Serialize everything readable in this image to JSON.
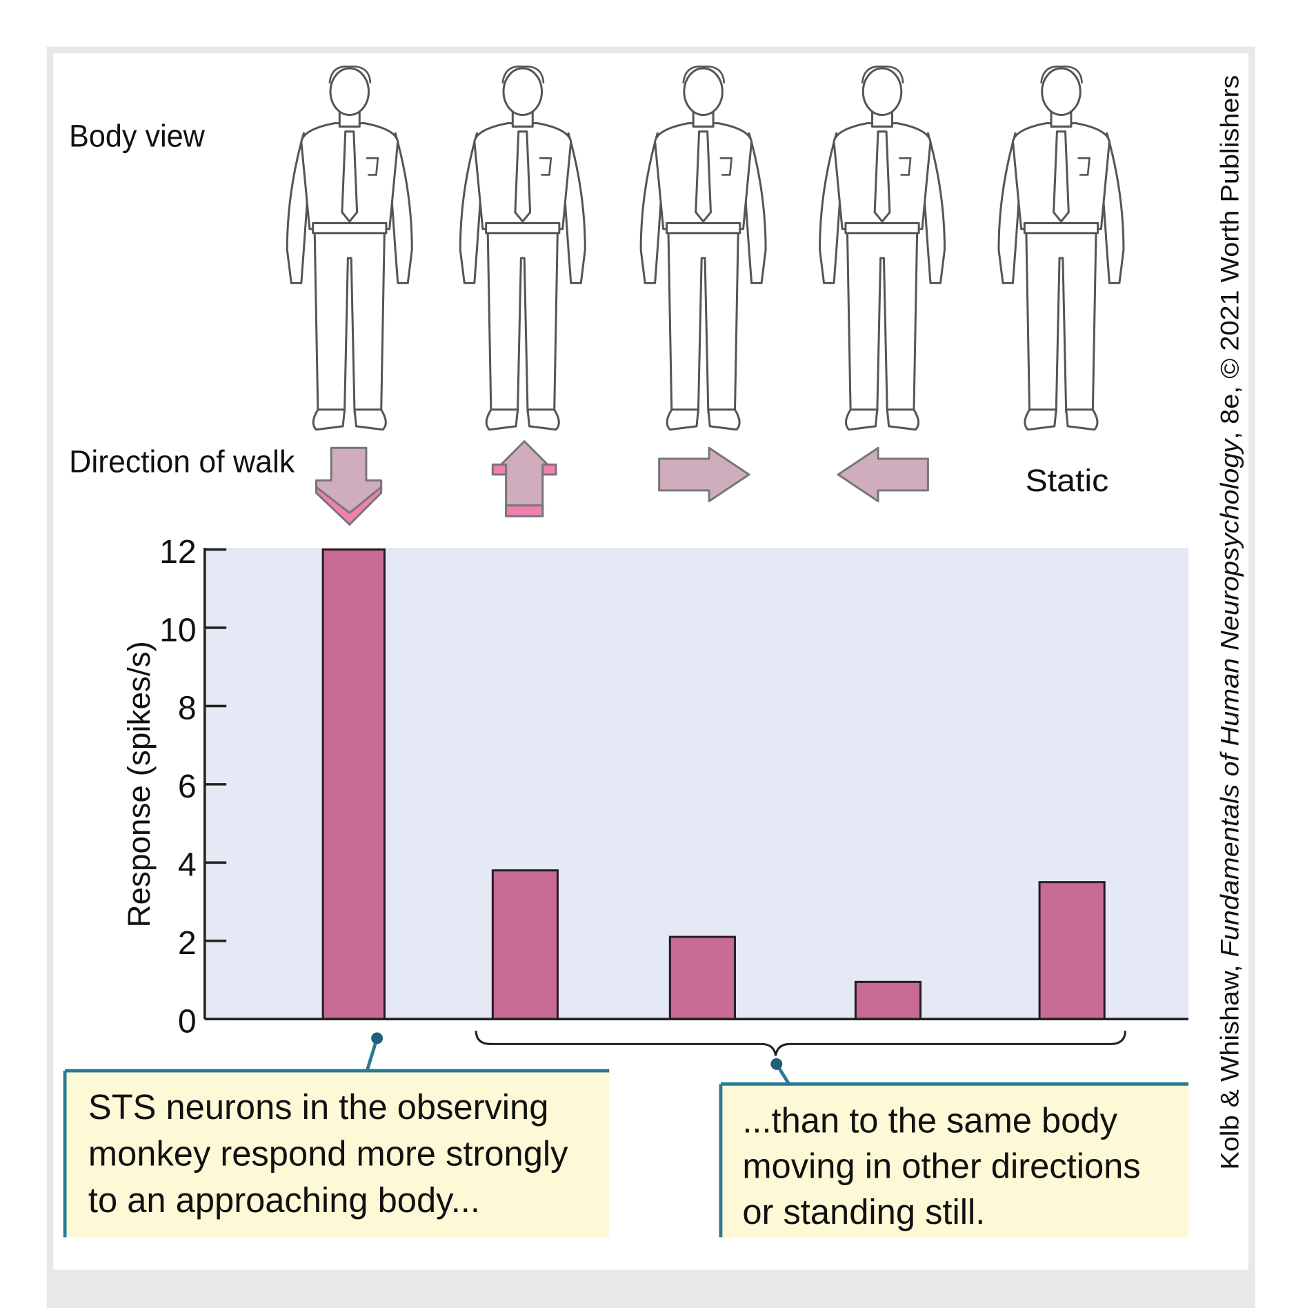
{
  "labels": {
    "body_view": "Body view",
    "direction_of_walk": "Direction of walk",
    "static": "Static"
  },
  "callouts": {
    "left": [
      "STS neurons in the observing",
      "monkey respond more strongly",
      "to an approaching body..."
    ],
    "right": [
      "...than to the same body",
      "moving in other directions",
      "or standing still."
    ]
  },
  "credit": {
    "prefix": "Kolb & Whishaw, ",
    "title": "Fundamentals of Human Neuropsychology",
    "suffix": ", 8e, © 2021 Worth Publishers"
  },
  "colors": {
    "bar": "#c76b95",
    "plot_bg": "#e5e9f5",
    "arrow": "#cfadbd",
    "arrow_accent": "#f080b0",
    "callout_bg": "#fdf8d6",
    "callout_border": "#2a7a96",
    "frame": "#e8e8e8"
  },
  "chart_data": {
    "type": "bar",
    "categories": [
      "Toward (approaching)",
      "Away",
      "Right",
      "Left",
      "Static"
    ],
    "directions": [
      "down",
      "up",
      "right",
      "left",
      "static"
    ],
    "values": [
      12,
      3.8,
      2.1,
      0.95,
      3.5
    ],
    "ylabel": "Response (spikes/s)",
    "xlabel": "",
    "ylim": [
      0,
      12
    ],
    "yticks": [
      "0",
      "2",
      "4",
      "6",
      "8",
      "10",
      "12"
    ],
    "grid": false
  }
}
